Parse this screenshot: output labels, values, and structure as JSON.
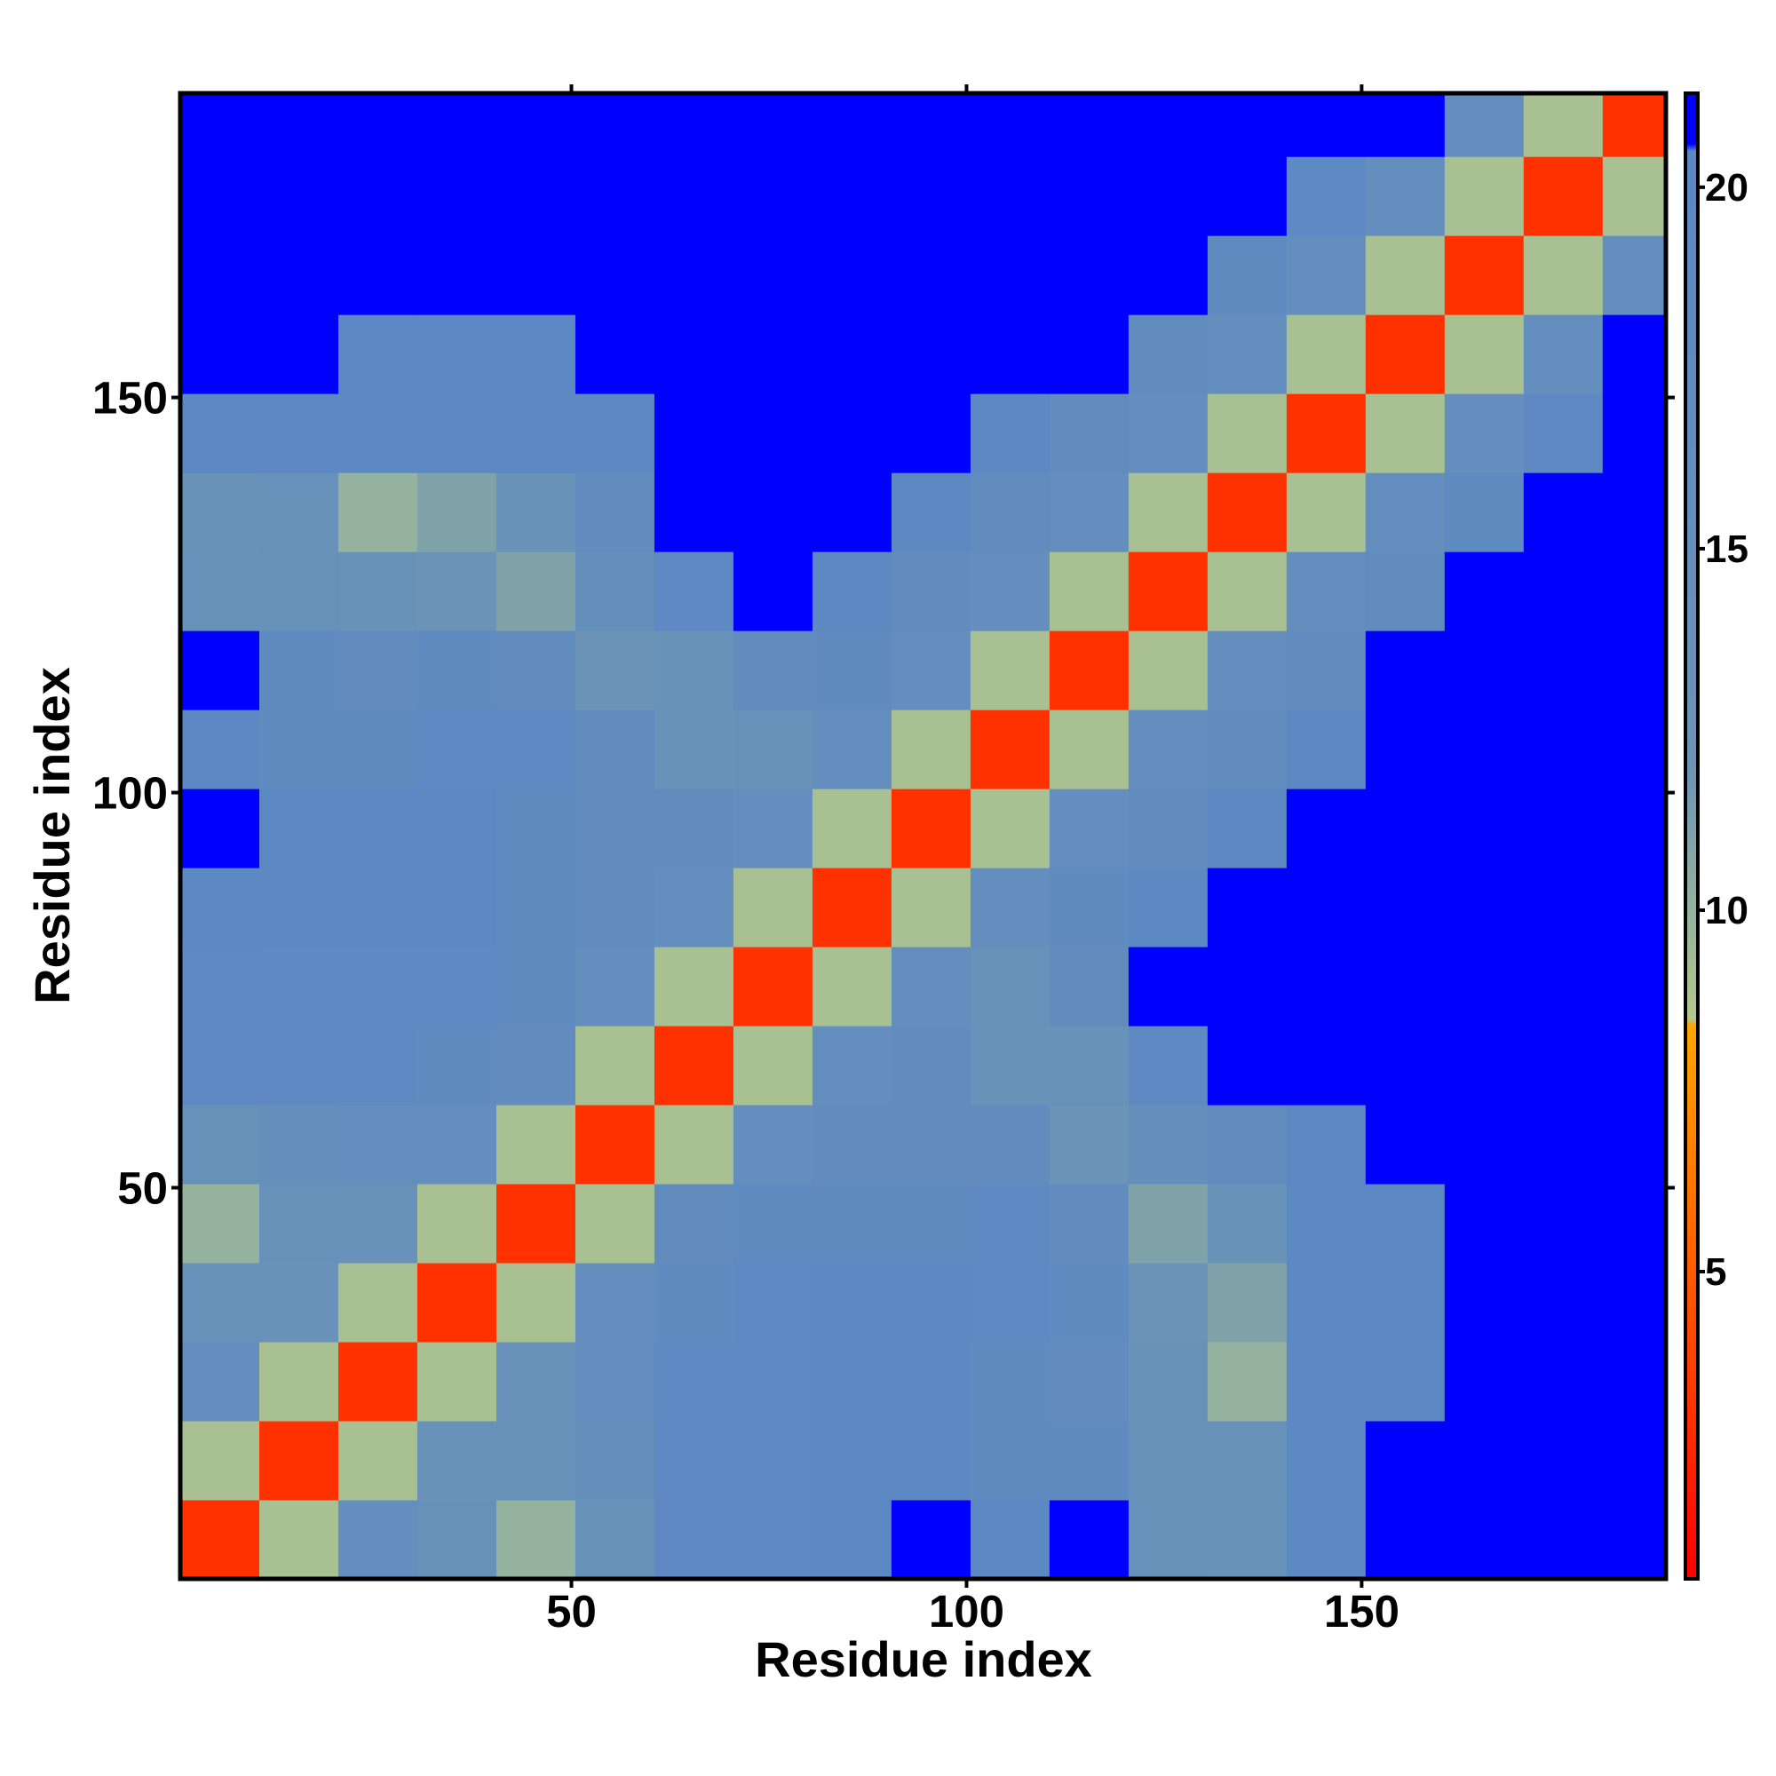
{
  "chart_data": {
    "type": "heatmap",
    "xlabel": "Residue index",
    "ylabel": "Residue index",
    "xlim": [
      0.5,
      188.5
    ],
    "ylim": [
      0.5,
      188.5
    ],
    "xticks": [
      50,
      100,
      150
    ],
    "yticks": [
      50,
      100,
      150
    ],
    "x_edges": [
      0.5,
      10.5,
      20.5,
      30.5,
      40.5,
      50.5,
      60.5,
      70.5,
      80.5,
      90.5,
      100.5,
      110.5,
      120.5,
      130.5,
      140.5,
      150.5,
      160.5,
      170.5,
      180.5,
      188.5
    ],
    "y_edges": [
      0.5,
      10.5,
      20.5,
      30.5,
      40.5,
      50.5,
      60.5,
      70.5,
      80.5,
      90.5,
      100.5,
      110.5,
      120.5,
      130.5,
      140.5,
      150.5,
      160.5,
      170.5,
      180.5,
      188.5
    ],
    "z": [
      [
        3,
        9,
        16,
        14,
        10,
        14,
        19,
        19,
        20,
        21.3,
        20,
        21.3,
        14,
        13,
        20,
        21.3,
        21.3,
        21.3,
        21.3
      ],
      [
        9,
        3,
        9,
        13,
        14,
        15,
        19,
        19,
        19.5,
        20,
        18,
        18,
        14,
        14,
        20,
        21.3,
        21.3,
        21.3,
        21.3
      ],
      [
        16,
        9,
        3,
        9,
        14,
        16,
        19,
        19,
        19.5,
        20,
        18,
        17,
        13,
        10,
        19.5,
        20,
        21.3,
        21.3,
        21.3
      ],
      [
        14,
        13,
        9,
        3,
        9,
        16,
        18,
        19,
        19.5,
        19.5,
        19,
        18,
        12,
        11,
        19.5,
        20,
        21.3,
        21.3,
        21.3
      ],
      [
        10,
        14,
        14,
        9,
        3,
        9,
        17,
        18,
        18,
        18,
        19,
        17,
        11,
        13,
        20,
        20,
        21.3,
        21.3,
        21.3
      ],
      [
        14,
        15,
        16,
        16,
        9,
        3,
        9,
        16,
        17,
        17,
        17,
        12,
        15,
        17,
        20,
        21.3,
        21.3,
        21.3,
        21.3
      ],
      [
        19,
        19,
        19,
        18,
        17,
        9,
        3,
        9,
        16,
        17,
        13,
        13,
        19,
        21.3,
        21.3,
        21.3,
        21.3,
        21.3,
        21.3
      ],
      [
        19,
        19,
        19,
        19,
        18,
        16,
        9,
        3,
        9,
        16,
        14,
        17,
        21.3,
        21.3,
        21.3,
        21.3,
        21.3,
        21.3,
        21.3
      ],
      [
        20,
        19.5,
        19.5,
        19.5,
        18,
        17,
        16,
        9,
        3,
        9,
        16,
        18,
        19.5,
        21.3,
        21.3,
        21.3,
        21.3,
        21.3,
        21.3
      ],
      [
        21.3,
        20,
        20,
        19.5,
        18,
        17,
        17,
        16,
        9,
        3,
        9,
        16,
        17,
        19.5,
        21.3,
        21.3,
        21.3,
        21.3,
        21.3
      ],
      [
        20,
        18,
        18,
        19,
        19,
        17,
        13,
        14,
        16,
        9,
        3,
        9,
        16,
        17,
        20,
        21.3,
        21.3,
        21.3,
        21.3
      ],
      [
        21.3,
        18,
        17,
        18,
        17,
        12,
        13,
        17,
        18,
        16,
        9,
        3,
        9,
        16,
        17,
        21.3,
        21.3,
        21.3,
        21.3
      ],
      [
        14,
        14,
        13,
        12,
        11,
        15,
        19,
        21.3,
        19.5,
        17,
        16,
        9,
        3,
        9,
        16,
        17,
        21.3,
        21.3,
        21.3
      ],
      [
        13,
        14,
        10,
        11,
        13,
        17,
        21.3,
        21.3,
        21.3,
        19.5,
        17,
        16,
        9,
        3,
        9,
        16,
        18,
        21.3,
        21.3
      ],
      [
        20,
        20,
        19.5,
        19.5,
        20,
        20,
        21.3,
        21.3,
        21.3,
        21.3,
        20,
        17,
        16,
        9,
        3,
        9,
        16,
        19,
        21.3
      ],
      [
        21.3,
        21.3,
        20,
        20,
        20,
        21.3,
        21.3,
        21.3,
        21.3,
        21.3,
        21.3,
        21.3,
        17,
        16,
        9,
        3,
        9,
        16,
        21.3
      ],
      [
        21.3,
        21.3,
        21.3,
        21.3,
        21.3,
        21.3,
        21.3,
        21.3,
        21.3,
        21.3,
        21.3,
        21.3,
        21.3,
        18,
        16,
        9,
        3,
        9,
        16
      ],
      [
        21.3,
        21.3,
        21.3,
        21.3,
        21.3,
        21.3,
        21.3,
        21.3,
        21.3,
        21.3,
        21.3,
        21.3,
        21.3,
        21.3,
        19,
        16,
        9,
        3,
        9
      ],
      [
        21.3,
        21.3,
        21.3,
        21.3,
        21.3,
        21.3,
        21.3,
        21.3,
        21.3,
        21.3,
        21.3,
        21.3,
        21.3,
        21.3,
        21.3,
        21.3,
        16,
        9,
        3
      ]
    ],
    "zlim": [
      0.75,
      21.3
    ],
    "zticks": [
      5,
      10,
      15,
      20
    ],
    "colorscale": [
      [
        0.75,
        "#ff0000"
      ],
      [
        8.4,
        "#ffa500"
      ],
      [
        8.5,
        "#b3c88c"
      ],
      [
        12,
        "#6b94b6"
      ],
      [
        20.5,
        "#5b87c4"
      ],
      [
        20.6,
        "#0000ff"
      ],
      [
        21.3,
        "#0000ff"
      ]
    ]
  }
}
